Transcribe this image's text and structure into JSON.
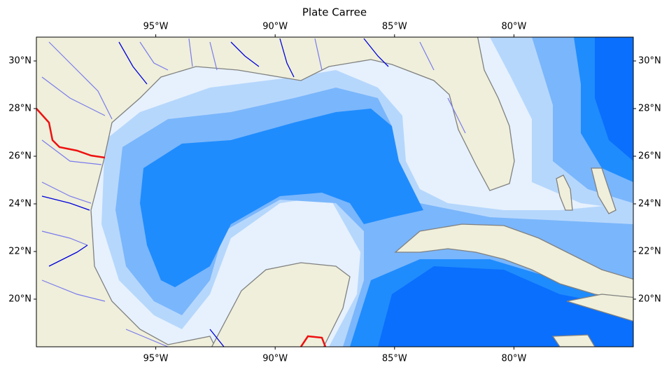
{
  "chart_data": {
    "type": "map",
    "title": "Plate Carree",
    "xlim": [
      -100,
      -75
    ],
    "ylim": [
      18,
      31
    ],
    "xticks": [
      {
        "value": -95,
        "label": "95°W"
      },
      {
        "value": -90,
        "label": "90°W"
      },
      {
        "value": -85,
        "label": "85°W"
      },
      {
        "value": -80,
        "label": "80°W"
      }
    ],
    "yticks": [
      {
        "value": 20,
        "label": "20°N"
      },
      {
        "value": 22,
        "label": "22°N"
      },
      {
        "value": 24,
        "label": "24°N"
      },
      {
        "value": 26,
        "label": "26°N"
      },
      {
        "value": 28,
        "label": "28°N"
      },
      {
        "value": 30,
        "label": "30°N"
      }
    ]
  }
}
